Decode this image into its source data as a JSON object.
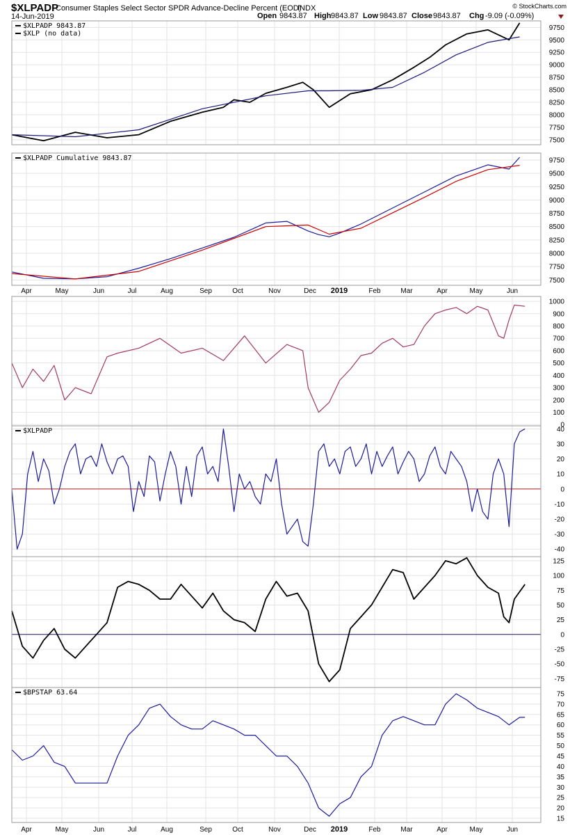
{
  "header": {
    "symbol": "$XLPADP",
    "description": "Consumer Staples Select Sector SPDR Advance-Decline Percent (EOD)",
    "exchange": "INDX",
    "date": "14-Jun-2019",
    "brand": "© StockCharts.com",
    "open_label": "Open",
    "open": "9843.87",
    "high_label": "High",
    "high": "9843.87",
    "low_label": "Low",
    "low": "9843.87",
    "close_label": "Close",
    "close": "9843.87",
    "chg_label": "Chg",
    "chg": "-9.09 (-0.09%)",
    "chg_color": "#8b1a1a"
  },
  "x_axis": {
    "labels": [
      "Apr",
      "May",
      "Jun",
      "Jul",
      "Aug",
      "Sep",
      "Oct",
      "Nov",
      "Dec",
      "2019",
      "Feb",
      "Mar",
      "Apr",
      "May",
      "Jun"
    ],
    "bold_label": "2019"
  },
  "chart_data": [
    {
      "type": "line",
      "panel": "price",
      "legend": [
        "$XLPADP 9843.87",
        "$XLP (no data)"
      ],
      "y_ticks": [
        7500,
        7750,
        8000,
        8250,
        8500,
        8750,
        9000,
        9250,
        9500,
        9750
      ],
      "ylim": [
        7400,
        9880
      ],
      "series": [
        {
          "name": "$XLPADP",
          "color": "#000000",
          "x": [
            0,
            6,
            12,
            18,
            24,
            30,
            36,
            40,
            42,
            45,
            48,
            52,
            55,
            57,
            60,
            64,
            68,
            72,
            76,
            79,
            82,
            86,
            90,
            94,
            96
          ],
          "values": [
            7600,
            7480,
            7650,
            7540,
            7600,
            7870,
            8050,
            8150,
            8300,
            8250,
            8430,
            8550,
            8650,
            8500,
            8150,
            8420,
            8500,
            8700,
            8950,
            9150,
            9400,
            9620,
            9700,
            9500,
            9840
          ]
        },
        {
          "name": "SMA",
          "color": "#1a1a7a",
          "x": [
            0,
            12,
            24,
            36,
            48,
            56,
            60,
            66,
            72,
            78,
            84,
            90,
            96
          ],
          "values": [
            7600,
            7560,
            7700,
            8120,
            8380,
            8480,
            8480,
            8490,
            8550,
            8850,
            9200,
            9450,
            9560
          ]
        }
      ]
    },
    {
      "type": "line",
      "panel": "cumulative",
      "legend": [
        "$XLPADP Cumulative 9843.87"
      ],
      "y_ticks": [
        7500,
        7750,
        8000,
        8250,
        8500,
        8750,
        9000,
        9250,
        9500,
        9750
      ],
      "ylim": [
        7400,
        9880
      ],
      "series": [
        {
          "name": "$XLPADP Cumulative",
          "color": "#1a1a9a",
          "x": [
            0,
            6,
            12,
            18,
            24,
            30,
            36,
            42,
            48,
            52,
            56,
            58,
            60,
            62,
            66,
            72,
            78,
            84,
            90,
            94,
            96
          ],
          "values": [
            7650,
            7530,
            7520,
            7560,
            7720,
            7900,
            8100,
            8300,
            8570,
            8600,
            8420,
            8350,
            8310,
            8380,
            8550,
            8850,
            9150,
            9450,
            9660,
            9580,
            9800
          ]
        },
        {
          "name": "MA",
          "color": "#cc0000",
          "x": [
            0,
            12,
            24,
            36,
            48,
            56,
            60,
            66,
            72,
            78,
            84,
            90,
            96
          ],
          "values": [
            7620,
            7520,
            7660,
            8060,
            8500,
            8530,
            8360,
            8470,
            8760,
            9050,
            9350,
            9570,
            9650
          ]
        }
      ]
    },
    {
      "type": "line",
      "panel": "oscillator-1",
      "y_ticks": [
        0,
        100,
        200,
        300,
        400,
        500,
        600,
        700,
        800,
        900,
        1000
      ],
      "ylim": [
        -10,
        1040
      ],
      "series": [
        {
          "name": "",
          "color": "#a03a64",
          "x": [
            0,
            2,
            4,
            6,
            8,
            10,
            12,
            15,
            18,
            20,
            24,
            28,
            32,
            36,
            40,
            44,
            48,
            52,
            55,
            56,
            58,
            60,
            62,
            64,
            66,
            68,
            70,
            72,
            74,
            76,
            78,
            80,
            82,
            84,
            86,
            88,
            90,
            92,
            93,
            94,
            95,
            97
          ],
          "values": [
            500,
            300,
            450,
            350,
            480,
            200,
            300,
            250,
            550,
            580,
            620,
            700,
            580,
            620,
            520,
            720,
            500,
            650,
            600,
            300,
            100,
            180,
            360,
            450,
            560,
            580,
            660,
            700,
            630,
            650,
            800,
            900,
            930,
            950,
            900,
            960,
            930,
            720,
            700,
            850,
            970,
            960
          ]
        }
      ]
    },
    {
      "type": "line",
      "panel": "oscillator-2",
      "legend": [
        "$XLPADP"
      ],
      "y_ticks": [
        -40,
        -30,
        -20,
        -10,
        0,
        10,
        20,
        30,
        40
      ],
      "ylim": [
        -45,
        42
      ],
      "series": [
        {
          "name": "$XLPADP",
          "color": "#1a1a9a",
          "x": [
            0,
            1,
            2,
            3,
            4,
            5,
            6,
            7,
            8,
            9,
            10,
            11,
            12,
            13,
            14,
            15,
            16,
            17,
            18,
            19,
            20,
            21,
            22,
            23,
            24,
            25,
            26,
            27,
            28,
            29,
            30,
            31,
            32,
            33,
            34,
            35,
            36,
            37,
            38,
            39,
            40,
            41,
            42,
            43,
            44,
            45,
            46,
            47,
            48,
            49,
            50,
            51,
            52,
            53,
            54,
            55,
            56,
            57,
            58,
            59,
            60,
            61,
            62,
            63,
            64,
            65,
            66,
            67,
            68,
            69,
            70,
            71,
            72,
            73,
            74,
            75,
            76,
            77,
            78,
            79,
            80,
            81,
            82,
            83,
            84,
            85,
            86,
            87,
            88,
            89,
            90,
            91,
            92,
            93,
            94,
            95,
            96,
            97
          ],
          "values": [
            0,
            -40,
            -30,
            10,
            25,
            5,
            20,
            12,
            -10,
            0,
            15,
            25,
            30,
            10,
            20,
            22,
            15,
            30,
            18,
            10,
            20,
            22,
            15,
            -15,
            5,
            -5,
            22,
            18,
            -8,
            10,
            25,
            15,
            -10,
            15,
            -5,
            22,
            28,
            10,
            15,
            5,
            40,
            15,
            -15,
            10,
            0,
            5,
            -5,
            -10,
            10,
            5,
            20,
            -10,
            -30,
            -25,
            -20,
            -35,
            -38,
            -10,
            25,
            30,
            15,
            20,
            10,
            25,
            28,
            15,
            20,
            30,
            10,
            25,
            15,
            22,
            28,
            10,
            18,
            25,
            20,
            5,
            10,
            22,
            28,
            15,
            10,
            25,
            20,
            15,
            5,
            -15,
            0,
            -15,
            -20,
            10,
            20,
            10,
            -25,
            30,
            38,
            40
          ]
        }
      ]
    },
    {
      "type": "line",
      "panel": "oscillator-3",
      "y_ticks": [
        -75,
        -50,
        -25,
        0,
        25,
        50,
        75,
        100,
        125
      ],
      "ylim": [
        -90,
        132
      ],
      "series": [
        {
          "name": "",
          "color": "#000000",
          "x": [
            0,
            2,
            4,
            6,
            8,
            10,
            12,
            14,
            16,
            18,
            20,
            22,
            24,
            26,
            28,
            30,
            32,
            34,
            36,
            38,
            40,
            42,
            44,
            46,
            48,
            50,
            52,
            54,
            56,
            58,
            60,
            62,
            64,
            66,
            68,
            70,
            72,
            74,
            76,
            78,
            80,
            82,
            84,
            86,
            88,
            90,
            92,
            93,
            94,
            95,
            97
          ],
          "values": [
            40,
            -20,
            -40,
            -10,
            10,
            -25,
            -40,
            -20,
            0,
            20,
            80,
            90,
            85,
            75,
            60,
            60,
            85,
            65,
            45,
            70,
            40,
            25,
            20,
            5,
            60,
            90,
            65,
            70,
            40,
            -50,
            -80,
            -60,
            10,
            30,
            50,
            80,
            110,
            105,
            60,
            80,
            100,
            125,
            120,
            130,
            100,
            80,
            70,
            30,
            20,
            60,
            85
          ]
        }
      ]
    },
    {
      "type": "line",
      "panel": "bpstap",
      "legend": [
        "$BPSTAP 63.64"
      ],
      "y_ticks": [
        15,
        20,
        25,
        30,
        35,
        40,
        45,
        50,
        55,
        60,
        65,
        70,
        75
      ],
      "ylim": [
        13,
        78
      ],
      "series": [
        {
          "name": "$BPSTAP",
          "color": "#1a1a9a",
          "x": [
            0,
            2,
            4,
            6,
            8,
            10,
            12,
            14,
            16,
            18,
            20,
            22,
            24,
            26,
            28,
            30,
            32,
            34,
            36,
            38,
            40,
            42,
            44,
            46,
            48,
            50,
            52,
            54,
            56,
            58,
            60,
            62,
            64,
            66,
            68,
            70,
            72,
            74,
            76,
            78,
            80,
            82,
            84,
            86,
            88,
            90,
            92,
            94,
            96,
            97
          ],
          "values": [
            48,
            43,
            45,
            50,
            42,
            40,
            32,
            32,
            32,
            32,
            45,
            55,
            60,
            68,
            70,
            64,
            60,
            58,
            58,
            62,
            60,
            58,
            55,
            55,
            50,
            45,
            45,
            40,
            32,
            20,
            16,
            22,
            25,
            35,
            40,
            55,
            62,
            64,
            62,
            60,
            60,
            70,
            75,
            72,
            68,
            66,
            64,
            60,
            63.64,
            63.64
          ]
        }
      ]
    }
  ]
}
